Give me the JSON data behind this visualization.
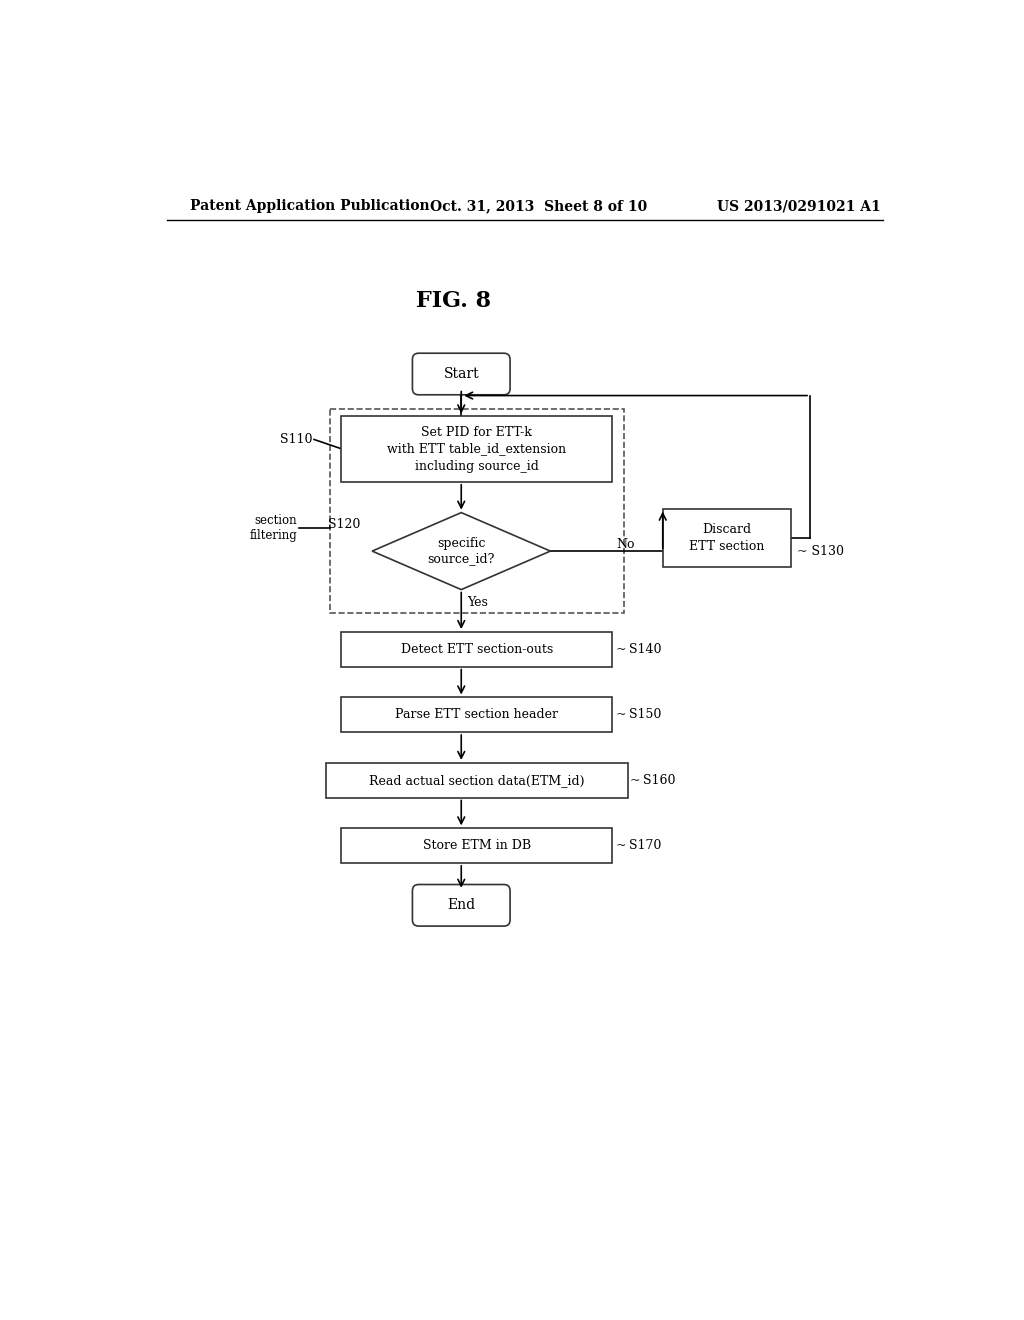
{
  "bg_color": "#ffffff",
  "header_left": "Patent Application Publication",
  "header_center": "Oct. 31, 2013  Sheet 8 of 10",
  "header_right": "US 2013/0291021 A1",
  "fig_label": "FIG. 8",
  "font_size_header": 10,
  "font_size_fig": 16,
  "font_size_body": 9,
  "font_size_label": 9
}
